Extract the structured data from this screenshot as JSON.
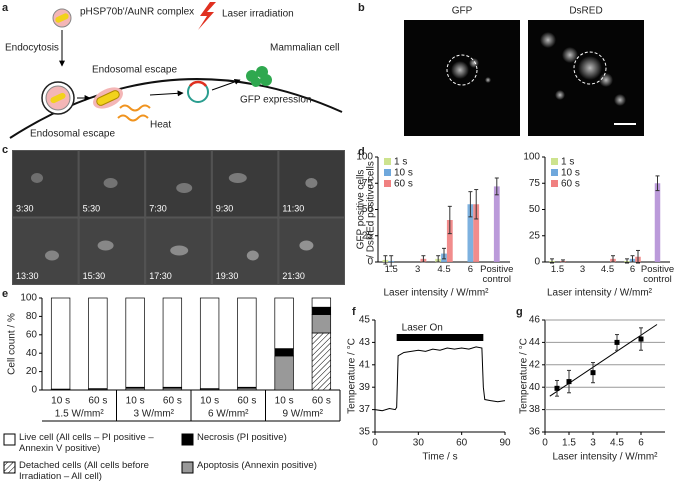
{
  "panel_labels": [
    "a",
    "b",
    "c",
    "d",
    "e",
    "f",
    "g"
  ],
  "diagram": {
    "complex": "pHSP70b'/AuNR complex",
    "laser": "Laser irradiation",
    "endocytosis": "Endocytosis",
    "cell": "Mammalian cell",
    "escape_top": "Endosomal escape",
    "heat": "Heat",
    "gfp": "GFP expression",
    "escape_bottom": "Endosomal escape"
  },
  "micrographs": {
    "titles": [
      "GFP",
      "DsRED"
    ]
  },
  "timelapse": {
    "times": [
      "3:30",
      "5:30",
      "7:30",
      "9:30",
      "11:30",
      "13:30",
      "15:30",
      "17:30",
      "19:30",
      "21:30"
    ]
  },
  "chart_data": [
    {
      "type": "bar",
      "ylabel": [
        "GFP positive cells",
        "/ DsREd positive cells"
      ],
      "xlabel": "Laser intensity / W/mm²",
      "categories": [
        "1.5",
        "3",
        "4.5",
        "6",
        "Positive control"
      ],
      "series": [
        {
          "name": "1 s",
          "color": "#cde38e",
          "values": [
            2,
            0,
            3,
            0,
            null
          ],
          "errors": [
            4,
            0,
            3,
            0,
            null
          ]
        },
        {
          "name": "10 s",
          "color": "#6fa8dc",
          "values": [
            1,
            0,
            8,
            55,
            null
          ],
          "errors": [
            5,
            0,
            5,
            12,
            null
          ]
        },
        {
          "name": "60 s",
          "color": "#f08080",
          "values": [
            0,
            3,
            40,
            55,
            null
          ],
          "errors": [
            0,
            3,
            13,
            14,
            null
          ]
        }
      ],
      "control": {
        "color": "#b48fd6",
        "values": [
          null,
          null,
          null,
          null,
          72
        ],
        "errors": [
          null,
          null,
          null,
          null,
          8
        ]
      },
      "ylim": [
        0,
        100
      ],
      "yticks": [
        0,
        25,
        50,
        75,
        100
      ]
    },
    {
      "type": "bar",
      "xlabel": "Laser intensity / W/mm²",
      "categories": [
        "1.5",
        "3",
        "4.5",
        "6",
        "Positive control"
      ],
      "series": [
        {
          "name": "1 s",
          "color": "#cde38e",
          "values": [
            1,
            0,
            0,
            1,
            null
          ],
          "errors": [
            2,
            0,
            0,
            2,
            null
          ]
        },
        {
          "name": "10 s",
          "color": "#6fa8dc",
          "values": [
            0,
            0,
            0,
            3,
            null
          ],
          "errors": [
            0,
            0,
            0,
            3,
            null
          ]
        },
        {
          "name": "60 s",
          "color": "#f08080",
          "values": [
            1,
            0,
            3,
            5,
            null
          ],
          "errors": [
            1,
            0,
            3,
            6,
            null
          ]
        }
      ],
      "control": {
        "color": "#b48fd6",
        "values": [
          null,
          null,
          null,
          null,
          75
        ],
        "errors": [
          null,
          null,
          null,
          null,
          7
        ]
      },
      "ylim": [
        0,
        100
      ],
      "yticks": [
        0,
        25,
        50,
        75,
        100
      ]
    },
    {
      "type": "stacked_bar",
      "ylabel": "Cell count / %",
      "categories": [
        "10 s",
        "60 s",
        "10 s",
        "60 s",
        "10 s",
        "60 s",
        "10 s",
        "60 s"
      ],
      "groups": [
        "1.5 W/mm²",
        "3 W/mm²",
        "6 W/mm²",
        "9 W/mm²"
      ],
      "series": [
        {
          "name": "Detached cells (All cells before Irradiation – All cell)",
          "color": "#ffffff",
          "pattern": "hatch",
          "values": [
            0,
            0,
            0,
            0,
            0,
            0,
            0,
            62
          ]
        },
        {
          "name": "Apoptosis (Annexin positive)",
          "color": "#999999",
          "values": [
            0.5,
            1,
            2,
            2,
            1,
            2,
            37,
            20
          ]
        },
        {
          "name": "Necrosis (PI positive)",
          "color": "#000000",
          "values": [
            0.5,
            0.5,
            1,
            1,
            0.5,
            1,
            8,
            8
          ]
        },
        {
          "name": "Live cell (All cells – PI positive – Annexin V positive)",
          "color": "#ffffff",
          "values": [
            99,
            98.5,
            97,
            97,
            98.5,
            97,
            55,
            10
          ]
        }
      ],
      "ylim": [
        0,
        100
      ],
      "yticks": [
        0,
        20,
        40,
        60,
        80,
        100
      ]
    },
    {
      "type": "line",
      "xlabel": "Time / s",
      "ylabel": "Temperature / °C",
      "annotation": "Laser On",
      "laser_on": [
        15,
        75
      ],
      "x": [
        0,
        5,
        10,
        14,
        15,
        16,
        20,
        25,
        30,
        35,
        40,
        45,
        50,
        55,
        60,
        65,
        70,
        74,
        75,
        76,
        80,
        85,
        90
      ],
      "values": [
        37.0,
        36.9,
        37.1,
        37.0,
        37.2,
        41.8,
        42.1,
        42.2,
        42.3,
        42.2,
        42.4,
        42.3,
        42.5,
        42.4,
        42.5,
        42.4,
        42.6,
        42.5,
        39,
        37.9,
        37.8,
        37.7,
        37.8
      ],
      "color": "#000000",
      "xlim": [
        0,
        90
      ],
      "xticks": [
        0,
        30,
        60,
        90
      ],
      "ylim": [
        35,
        45
      ],
      "yticks": [
        35,
        37,
        39,
        41,
        43,
        45
      ]
    },
    {
      "type": "scatter",
      "xlabel": "Laser intensity / W/mm²",
      "ylabel": "Temperature / °C",
      "x": [
        0.75,
        1.5,
        3,
        4.5,
        6
      ],
      "values": [
        39.9,
        40.5,
        41.3,
        44,
        44.3
      ],
      "errors": [
        0.7,
        1,
        0.9,
        0.7,
        1
      ],
      "fit": {
        "x": [
          0.3,
          7
        ],
        "y": [
          39.2,
          45.6
        ]
      },
      "color": "#000000",
      "grid": true,
      "xlim": [
        0,
        7.5
      ],
      "xticks": [
        0,
        1.5,
        3,
        4.5,
        6
      ],
      "ylim": [
        36,
        46
      ],
      "yticks": [
        36,
        38,
        40,
        42,
        44,
        46
      ]
    }
  ]
}
